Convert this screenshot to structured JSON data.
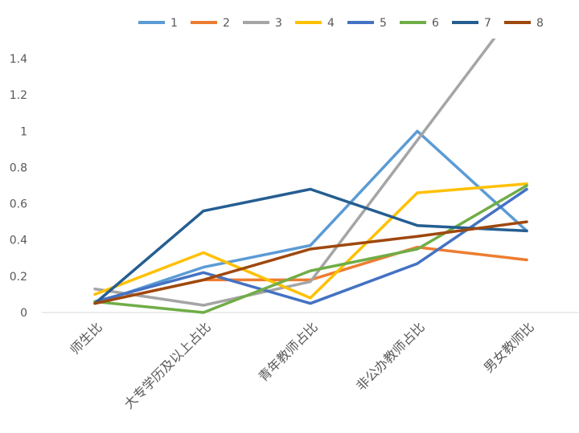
{
  "chart_data": {
    "type": "line",
    "categories": [
      "师生比",
      "大专学历及以上占比",
      "青年教师占比",
      "非公办教师占比",
      "男女教师比"
    ],
    "yticks": [
      "0",
      "0.2",
      "0.4",
      "0.6",
      "0.8",
      "1",
      "1.2",
      "1.4"
    ],
    "ylim": [
      0,
      1.55
    ],
    "grid": false,
    "legend_position": "top",
    "series": [
      {
        "name": "1",
        "color": "#5B9BD5",
        "values": [
          0.05,
          0.25,
          0.37,
          1.0,
          0.45
        ]
      },
      {
        "name": "2",
        "color": "#ED7D31",
        "values": [
          0.05,
          0.18,
          0.18,
          0.36,
          0.29
        ]
      },
      {
        "name": "3",
        "color": "#A5A5A5",
        "values": [
          0.13,
          0.04,
          0.17,
          0.95,
          1.75
        ]
      },
      {
        "name": "4",
        "color": "#FFC000",
        "values": [
          0.1,
          0.33,
          0.08,
          0.66,
          0.71
        ]
      },
      {
        "name": "5",
        "color": "#4472C4",
        "values": [
          0.06,
          0.22,
          0.05,
          0.27,
          0.68
        ]
      },
      {
        "name": "6",
        "color": "#70AD47",
        "values": [
          0.06,
          0.0,
          0.23,
          0.35,
          0.7
        ]
      },
      {
        "name": "7",
        "color": "#255E91",
        "values": [
          0.05,
          0.56,
          0.68,
          0.48,
          0.45
        ]
      },
      {
        "name": "8",
        "color": "#9E480E",
        "values": [
          0.05,
          0.18,
          0.35,
          0.42,
          0.5
        ]
      }
    ]
  }
}
